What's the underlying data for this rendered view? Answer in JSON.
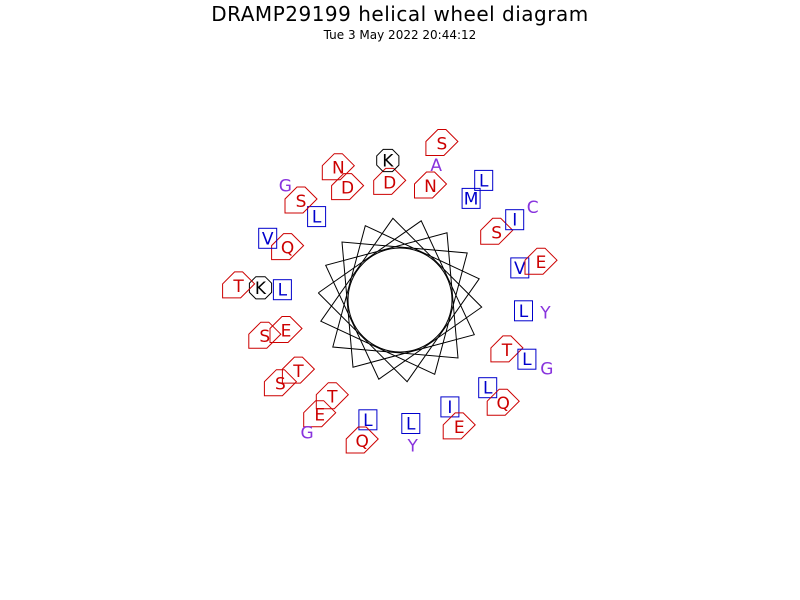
{
  "title": "DRAMP29199 helical wheel diagram",
  "timestamp": "Tue  3 May 2022 20:44:12",
  "colors": {
    "hydrophobic": "#0000cc",
    "polar": "#cc0000",
    "basic": "#000000",
    "special": "#8833dd"
  },
  "residues": [
    {
      "letter": "L",
      "type": "hydrophobic"
    },
    {
      "letter": "N",
      "type": "polar"
    },
    {
      "letter": "T",
      "type": "polar"
    },
    {
      "letter": "T",
      "type": "polar"
    },
    {
      "letter": "L",
      "type": "hydrophobic"
    },
    {
      "letter": "S",
      "type": "polar"
    },
    {
      "letter": "I",
      "type": "hydrophobic"
    },
    {
      "letter": "E",
      "type": "polar"
    },
    {
      "letter": "D",
      "type": "polar"
    },
    {
      "letter": "L",
      "type": "hydrophobic"
    },
    {
      "letter": "L",
      "type": "hydrophobic"
    },
    {
      "letter": "Q",
      "type": "polar"
    },
    {
      "letter": "M",
      "type": "hydrophobic"
    },
    {
      "letter": "L",
      "type": "hydrophobic"
    },
    {
      "letter": "T",
      "type": "polar"
    },
    {
      "letter": "D",
      "type": "polar"
    },
    {
      "letter": "V",
      "type": "hydrophobic"
    },
    {
      "letter": "L",
      "type": "hydrophobic"
    },
    {
      "letter": "K",
      "type": "basic"
    },
    {
      "letter": "A",
      "type": "special"
    },
    {
      "letter": "L",
      "type": "hydrophobic"
    },
    {
      "letter": "E",
      "type": "polar"
    },
    {
      "letter": "S",
      "type": "polar"
    },
    {
      "letter": "I",
      "type": "hydrophobic"
    },
    {
      "letter": "E",
      "type": "polar"
    },
    {
      "letter": "S",
      "type": "polar"
    },
    {
      "letter": "K",
      "type": "basic"
    },
    {
      "letter": "Y",
      "type": "special"
    },
    {
      "letter": "Q",
      "type": "polar"
    },
    {
      "letter": "V",
      "type": "hydrophobic"
    },
    {
      "letter": "L",
      "type": "hydrophobic"
    },
    {
      "letter": "Q",
      "type": "polar"
    },
    {
      "letter": "S",
      "type": "polar"
    },
    {
      "letter": "N",
      "type": "polar"
    },
    {
      "letter": "E",
      "type": "polar"
    },
    {
      "letter": "Y",
      "type": "special"
    },
    {
      "letter": "T",
      "type": "polar"
    },
    {
      "letter": "S",
      "type": "polar"
    },
    {
      "letter": "G",
      "type": "special"
    },
    {
      "letter": "G",
      "type": "special"
    },
    {
      "letter": "G",
      "type": "special"
    },
    {
      "letter": "C",
      "type": "special"
    }
  ]
}
